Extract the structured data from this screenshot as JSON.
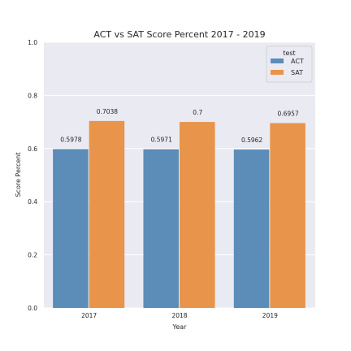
{
  "chart_data": {
    "type": "bar",
    "title": "ACT vs SAT Score Percent 2017 - 2019",
    "xlabel": "Year",
    "ylabel": "Score Percent",
    "categories": [
      "2017",
      "2018",
      "2019"
    ],
    "series": [
      {
        "name": "ACT",
        "values": [
          0.5978,
          0.5971,
          0.5962
        ],
        "labels": [
          "0.5978",
          "0.5971",
          "0.5962"
        ],
        "color": "#5b8db8"
      },
      {
        "name": "SAT",
        "values": [
          0.7038,
          0.7,
          0.6957
        ],
        "labels": [
          "0.7038",
          "0.7",
          "0.6957"
        ],
        "color": "#e8944a"
      }
    ],
    "ylim": [
      0,
      1.0
    ],
    "yticks": [
      "0.0",
      "0.2",
      "0.4",
      "0.6",
      "0.8",
      "1.0"
    ],
    "grid": true,
    "background": "#eaeaf2",
    "legend": {
      "title": "test",
      "placement": "top-right"
    }
  }
}
